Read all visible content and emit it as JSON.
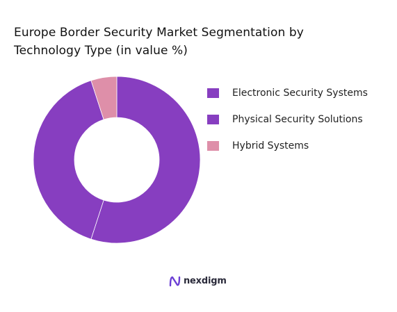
{
  "chart_data": {
    "type": "pie",
    "title": "Europe Border Security Market Segmentation by\nTechnology Type (in value %)",
    "categories": [
      "Electronic Security Systems",
      "Physical Security Solutions",
      "Hybrid Systems"
    ],
    "values": [
      55,
      40,
      5
    ],
    "colors": [
      "#873ec0",
      "#873ec0",
      "#de8fa9"
    ],
    "donut": true,
    "legend_position": "right"
  },
  "legend": {
    "items": [
      {
        "label": "Electronic Security Systems",
        "color": "#873ec0"
      },
      {
        "label": "Physical Security Solutions",
        "color": "#873ec0"
      },
      {
        "label": "Hybrid Systems",
        "color": "#de8fa9"
      }
    ]
  },
  "brand": {
    "name": "nexdigm",
    "icon": "nexdigm-logo-icon",
    "icon_color": "#6b3fd4"
  }
}
